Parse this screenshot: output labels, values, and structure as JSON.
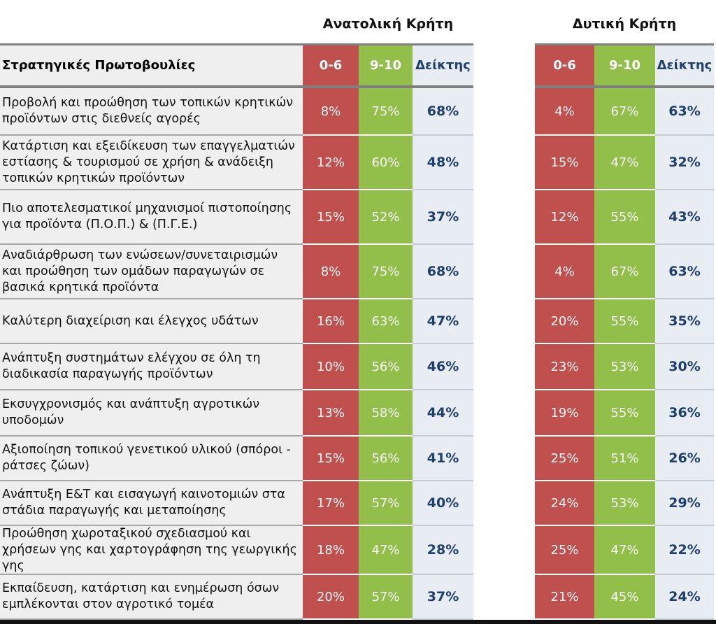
{
  "chart_data": {
    "type": "table",
    "regions": [
      "Ανατολική Κρήτη",
      "Δυτική Κρήτη"
    ],
    "row_header": "Στρατηγικές Πρωτοβουλίες",
    "columns": [
      "0-6",
      "9-10",
      "Δείκτης"
    ],
    "colors": {
      "low": "#c0504d",
      "high": "#92bf4a",
      "index_bg": "#e8ecf3",
      "index_text": "#1f3f6f"
    },
    "rows": [
      {
        "label": "Προβολή και προώθηση των τοπικών κρητικών προϊόντων στις διεθνείς αγορές",
        "east": [
          "8%",
          "75%",
          "68%"
        ],
        "west": [
          "4%",
          "67%",
          "63%"
        ]
      },
      {
        "label": "Κατάρτιση και εξειδίκευση των επαγγελματιών εστίασης & τουρισμού σε χρήση & ανάδειξη τοπικών κρητικών προϊόντων",
        "east": [
          "12%",
          "60%",
          "48%"
        ],
        "west": [
          "15%",
          "47%",
          "32%"
        ]
      },
      {
        "label": "Πιο αποτελεσματικοί μηχανισμοί πιστοποίησης για προϊόντα (Π.Ο.Π.) & (Π.Γ.Ε.)",
        "east": [
          "15%",
          "52%",
          "37%"
        ],
        "west": [
          "12%",
          "55%",
          "43%"
        ]
      },
      {
        "label": "Αναδιάρθρωση των ενώσεων/συνεταιρισμών και προώθηση των ομάδων παραγωγών σε βασικά κρητικά προϊόντα",
        "east": [
          "8%",
          "75%",
          "68%"
        ],
        "west": [
          "4%",
          "67%",
          "63%"
        ]
      },
      {
        "label": "Καλύτερη διαχείριση και έλεγχος υδάτων",
        "east": [
          "16%",
          "63%",
          "47%"
        ],
        "west": [
          "20%",
          "55%",
          "35%"
        ]
      },
      {
        "label": "Ανάπτυξη συστημάτων ελέγχου σε όλη τη διαδικασία παραγωγής προϊόντων",
        "east": [
          "10%",
          "56%",
          "46%"
        ],
        "west": [
          "23%",
          "53%",
          "30%"
        ]
      },
      {
        "label": "Εκσυγχρονισμός και ανάπτυξη αγροτικών υποδομών",
        "east": [
          "13%",
          "58%",
          "44%"
        ],
        "west": [
          "19%",
          "55%",
          "36%"
        ]
      },
      {
        "label": "Αξιοποίηση τοπικού γενετικού υλικού (σπόροι - ράτσες ζώων)",
        "east": [
          "15%",
          "56%",
          "41%"
        ],
        "west": [
          "25%",
          "51%",
          "26%"
        ]
      },
      {
        "label": "Ανάπτυξη Ε&Τ και εισαγωγή καινοτομιών στα στάδια παραγωγής και μεταποίησης",
        "east": [
          "17%",
          "57%",
          "40%"
        ],
        "west": [
          "24%",
          "53%",
          "29%"
        ]
      },
      {
        "label": "Προώθηση χωροταξικού σχεδιασμού και χρήσεων γης και χαρτογράφηση της γεωργικής γης",
        "east": [
          "18%",
          "47%",
          "28%"
        ],
        "west": [
          "25%",
          "47%",
          "22%"
        ]
      },
      {
        "label": "Εκπαίδευση, κατάρτιση και ενημέρωση όσων εμπλέκονται στον αγροτικό τομέα",
        "east": [
          "20%",
          "57%",
          "37%"
        ],
        "west": [
          "21%",
          "45%",
          "24%"
        ]
      }
    ]
  }
}
